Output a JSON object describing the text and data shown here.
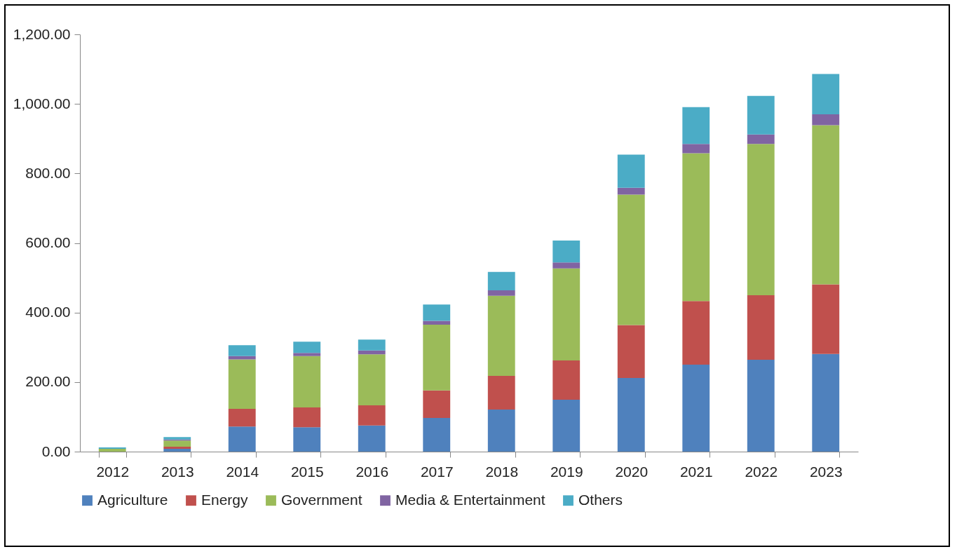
{
  "chart_data": {
    "type": "bar",
    "stacked": true,
    "categories": [
      "2012",
      "2013",
      "2014",
      "2015",
      "2016",
      "2017",
      "2018",
      "2019",
      "2020",
      "2021",
      "2022",
      "2023"
    ],
    "series": [
      {
        "name": "Agriculture",
        "color": "#4f81bd",
        "values": [
          null,
          8,
          72,
          70,
          75,
          97,
          121,
          149,
          212,
          250,
          264,
          281
        ]
      },
      {
        "name": "Energy",
        "color": "#c0504d",
        "values": [
          null,
          6,
          51,
          57,
          58,
          79,
          97,
          113,
          152,
          183,
          186,
          200
        ]
      },
      {
        "name": "Government",
        "color": "#9bbb59",
        "values": [
          8,
          18,
          142,
          148,
          147,
          189,
          230,
          265,
          375,
          425,
          435,
          458
        ]
      },
      {
        "name": "Media & Entertainment",
        "color": "#8064a2",
        "values": [
          null,
          3,
          10,
          9,
          11,
          11,
          16,
          17,
          20,
          27,
          27,
          31
        ]
      },
      {
        "name": "Others",
        "color": "#4bacc6",
        "values": [
          4,
          7,
          31,
          32,
          31,
          47,
          53,
          63,
          95,
          106,
          111,
          116
        ]
      }
    ],
    "ylim": [
      0,
      1200
    ],
    "yticks": [
      {
        "value": 0,
        "label": "0.00"
      },
      {
        "value": 200,
        "label": "200.00"
      },
      {
        "value": 400,
        "label": "400.00"
      },
      {
        "value": 600,
        "label": "600.00"
      },
      {
        "value": 800,
        "label": "800.00"
      },
      {
        "value": 1000,
        "label": "1,000.00"
      },
      {
        "value": 1200,
        "label": "1,200.00"
      }
    ],
    "grid": false,
    "legend": "bottom"
  }
}
